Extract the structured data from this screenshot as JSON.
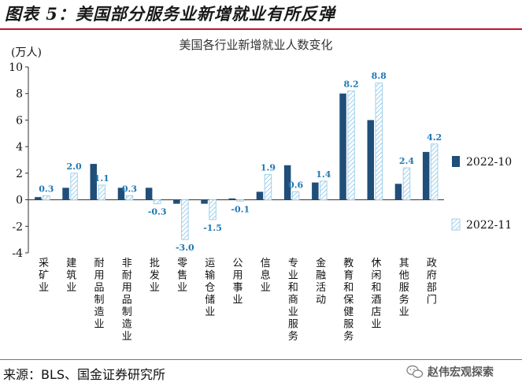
{
  "figure": {
    "title": "图表 5：美国部分服务业新增就业有所反弹",
    "source": "来源：BLS、国金证券研究所",
    "watermark": "赵伟宏观探索",
    "watermark_icon": "wechat-icon"
  },
  "colors": {
    "rule": "#c8102e",
    "series1": "#1f4e79",
    "series2_stroke": "#9fd0ec",
    "series2_hatch": "#9fd0ec",
    "label1": "#111111",
    "label2": "#1f78b4"
  },
  "chart_data": {
    "type": "bar",
    "title": "美国各行业新增就业人数变化",
    "ylabel": "(万人)",
    "xlabel": "",
    "ylim": [
      -4,
      10
    ],
    "yticks": [
      -4,
      -2,
      0,
      2,
      4,
      6,
      8,
      10
    ],
    "grid": false,
    "legend_position": "right",
    "categories": [
      "采矿业",
      "建筑业",
      "耐用品制造业",
      "非耐用品制造业",
      "批发业",
      "零售业",
      "运输仓储业",
      "公用事业",
      "信息业",
      "专业和商业服务",
      "金融活动",
      "教育和保健服务",
      "休闲和酒店业",
      "其他服务业",
      "政府部门"
    ],
    "series": [
      {
        "name": "2022-10",
        "values": [
          0.2,
          0.9,
          2.7,
          0.9,
          0.9,
          -0.3,
          -0.3,
          0.1,
          0.6,
          2.6,
          1.3,
          8.0,
          6.0,
          1.2,
          3.6
        ],
        "labels": [
          null,
          null,
          null,
          null,
          null,
          null,
          null,
          null,
          null,
          null,
          null,
          null,
          null,
          null,
          null
        ]
      },
      {
        "name": "2022-11",
        "values": [
          0.3,
          2.0,
          1.1,
          0.3,
          -0.3,
          -3.0,
          -1.5,
          -0.1,
          1.9,
          0.6,
          1.4,
          8.2,
          8.8,
          2.4,
          4.2
        ],
        "labels": [
          "0.3",
          "2.0",
          "1.1",
          "0.3",
          "-0.3",
          "-3.0",
          "-1.5",
          "-0.1",
          "1.9",
          "0.6",
          "1.4",
          "8.2",
          "8.8",
          "2.4",
          "4.2"
        ]
      }
    ]
  }
}
